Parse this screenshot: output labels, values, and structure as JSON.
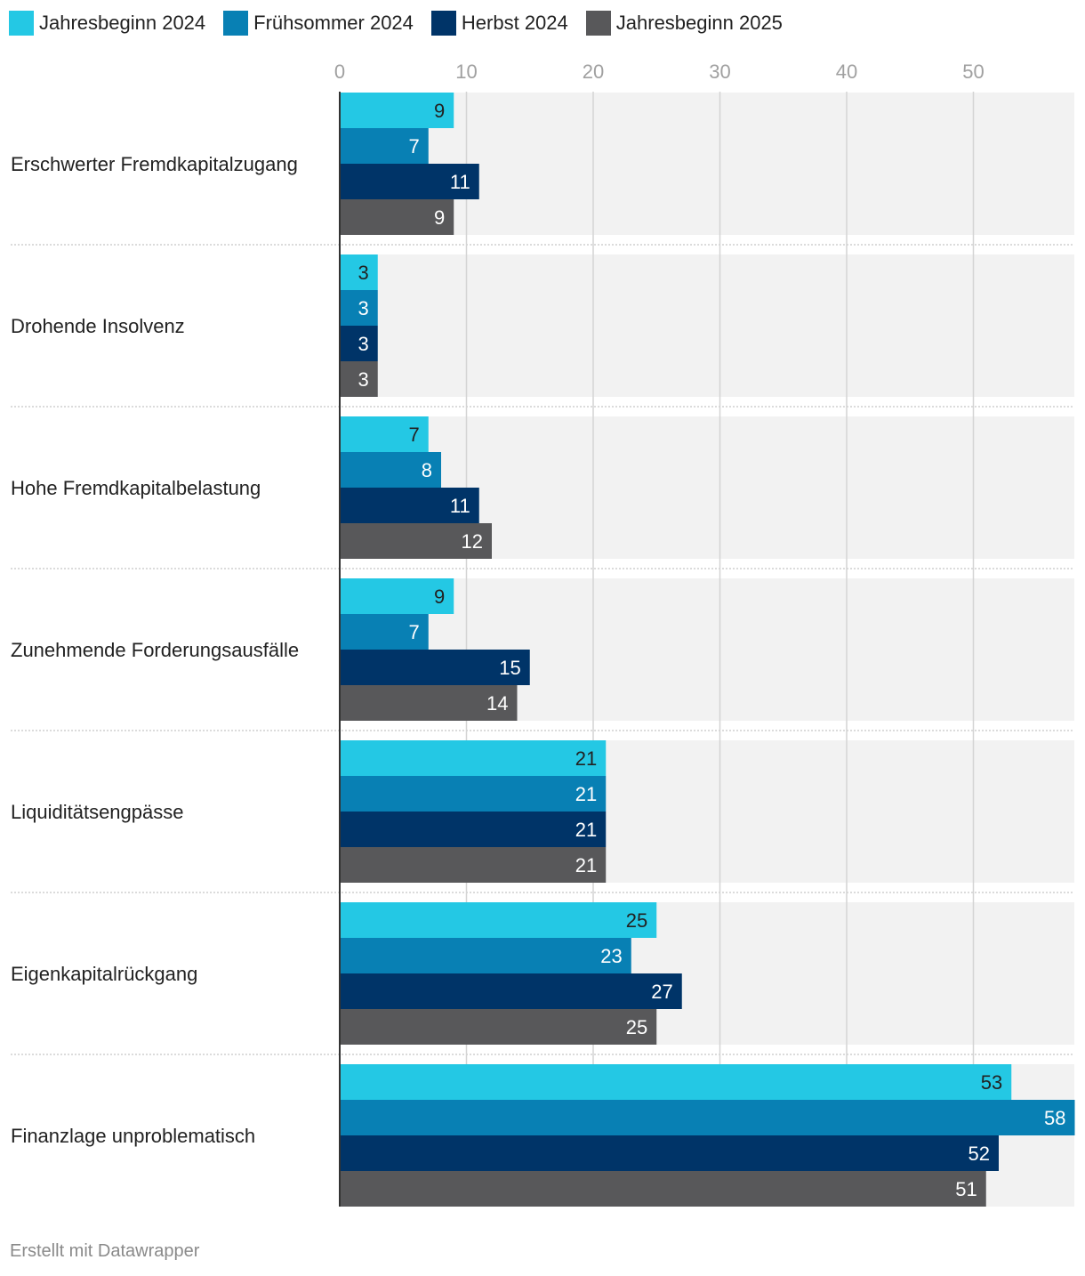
{
  "chart_data": {
    "type": "bar",
    "orientation": "horizontal",
    "title": "",
    "xlabel": "",
    "ylabel": "",
    "xlim": [
      0,
      58
    ],
    "ticks": [
      0,
      10,
      20,
      30,
      40,
      50
    ],
    "grid": true,
    "legend_position": "top-left",
    "categories": [
      "Erschwerter Fremdkapitalzugang",
      "Drohende Insolvenz",
      "Hohe Fremdkapitalbelastung",
      "Zunehmende Forderungsausfälle",
      "Liquiditätsengpässe",
      "Eigenkapitalrückgang",
      "Finanzlage unproblematisch"
    ],
    "series": [
      {
        "name": "Jahresbeginn 2024",
        "color": "#24c8e4",
        "label_color": "#222222",
        "values": [
          9,
          3,
          7,
          9,
          21,
          25,
          53
        ]
      },
      {
        "name": "Frühsommer 2024",
        "color": "#0880b4",
        "label_color": "#ffffff",
        "values": [
          7,
          3,
          8,
          7,
          21,
          23,
          58
        ]
      },
      {
        "name": "Herbst 2024",
        "color": "#003468",
        "label_color": "#ffffff",
        "values": [
          11,
          3,
          11,
          15,
          21,
          27,
          52
        ]
      },
      {
        "name": "Jahresbeginn 2025",
        "color": "#58585a",
        "label_color": "#ffffff",
        "values": [
          9,
          3,
          12,
          14,
          21,
          25,
          51
        ]
      }
    ]
  },
  "footer": {
    "credit": "Erstellt mit Datawrapper"
  }
}
